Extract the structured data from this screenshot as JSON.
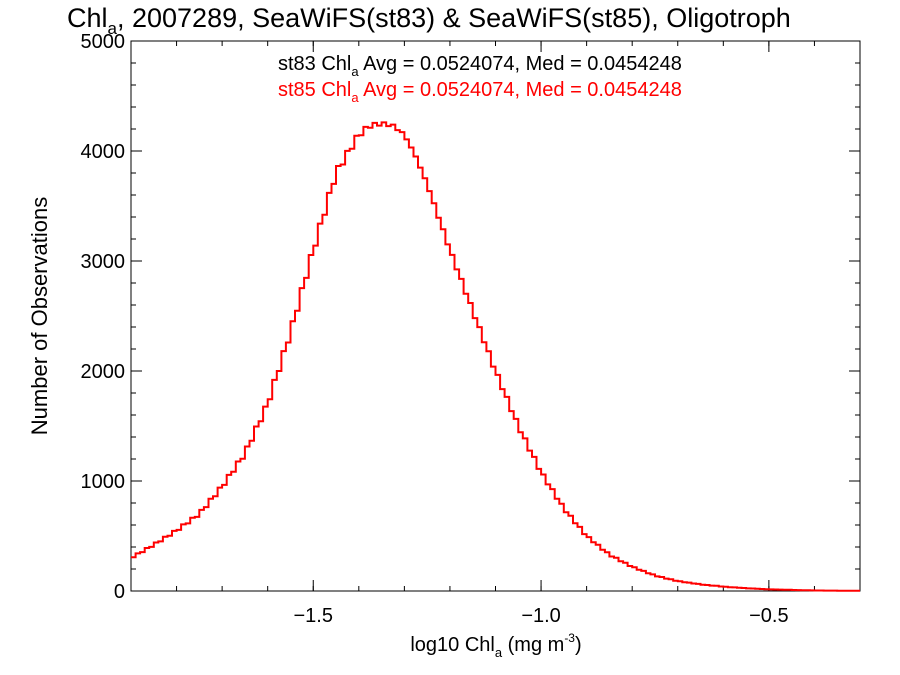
{
  "chart_data": {
    "type": "line",
    "title": {
      "part1": "Chl",
      "part1_sub": "a",
      "part2": ", 2007289, SeaWiFS(st83) & SeaWiFS(st85), Oligotroph"
    },
    "xlabel": {
      "part1": "log10 Chl",
      "part1_sub": "a",
      "part2": " (mg m",
      "part2_sup": "-3",
      "part3": ")"
    },
    "ylabel": "Number of Observations",
    "xlim": [
      -1.9,
      -0.3
    ],
    "ylim": [
      0,
      5000
    ],
    "x_ticks": [
      -1.5,
      -1.0,
      -0.5
    ],
    "x_tick_labels": [
      "−1.5",
      "−1.0",
      "−0.5"
    ],
    "y_ticks": [
      0,
      1000,
      2000,
      3000,
      4000,
      5000
    ],
    "y_tick_labels": [
      "0",
      "1000",
      "2000",
      "3000",
      "4000",
      "5000"
    ],
    "grid": false,
    "annotations": [
      {
        "prefix": "st83 Chl",
        "sub": "a",
        "suffix": " Avg = 0.0524074, Med = 0.0454248",
        "color": "#000000"
      },
      {
        "prefix": "st85 Chl",
        "sub": "a",
        "suffix": " Avg = 0.0524074, Med = 0.0454248",
        "color": "#ff0000"
      }
    ],
    "series": [
      {
        "color": "#ff0000",
        "step": true,
        "x": [
          -1.9,
          -1.85,
          -1.8,
          -1.75,
          -1.7,
          -1.65,
          -1.6,
          -1.55,
          -1.5,
          -1.45,
          -1.4,
          -1.375,
          -1.35,
          -1.325,
          -1.3,
          -1.275,
          -1.25,
          -1.2,
          -1.15,
          -1.1,
          -1.05,
          -1.0,
          -0.95,
          -0.9,
          -0.85,
          -0.8,
          -0.75,
          -0.7,
          -0.65,
          -0.6,
          -0.55,
          -0.5,
          -0.45,
          -0.4,
          -0.35,
          -0.3
        ],
        "y": [
          300,
          420,
          550,
          700,
          950,
          1250,
          1700,
          2350,
          3100,
          3800,
          4150,
          4230,
          4250,
          4230,
          4150,
          3950,
          3700,
          3100,
          2550,
          2000,
          1500,
          1080,
          750,
          500,
          330,
          220,
          140,
          90,
          60,
          40,
          25,
          15,
          10,
          5,
          3,
          2
        ]
      }
    ]
  }
}
